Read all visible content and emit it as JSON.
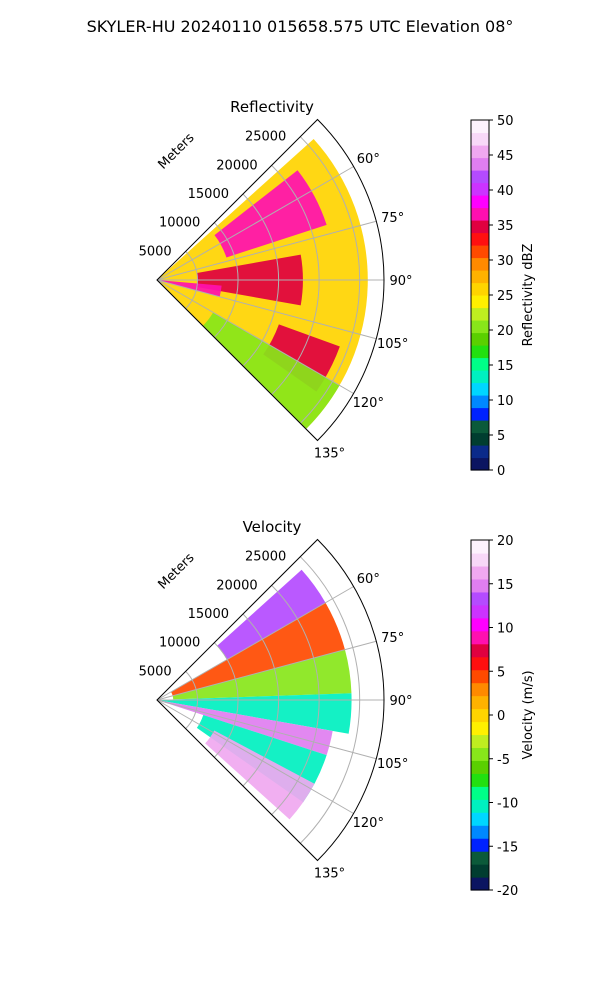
{
  "figure": {
    "suptitle": "SKYLER-HU  20240110  015658.575 UTC Elevation 08°"
  },
  "chart_data": [
    {
      "type": "heatmap",
      "subtype": "polar-sector",
      "title": "Reflectivity",
      "radial_label": "Meters",
      "radial_ticks": [
        5000,
        10000,
        15000,
        20000,
        25000
      ],
      "angle_ticks": [
        "60°",
        "75°",
        "90°",
        "105°",
        "120°",
        "135°"
      ],
      "angle_tick_values": [
        60,
        75,
        90,
        105,
        120,
        135
      ],
      "sector_deg": [
        45,
        135
      ],
      "rlim": [
        0,
        28000
      ],
      "grid": true,
      "colorbar": {
        "label": "Reflectivity dBZ",
        "range": [
          0,
          50
        ],
        "ticks": [
          0,
          5,
          10,
          15,
          20,
          25,
          30,
          35,
          40,
          45,
          50
        ],
        "stops": [
          "#0b1561",
          "#0a2a8a",
          "#003d30",
          "#0b5a3a",
          "#0022ff",
          "#0088ff",
          "#00d6ff",
          "#00f0c0",
          "#00ff88",
          "#22e010",
          "#5ad000",
          "#88e61a",
          "#bfee20",
          "#fff000",
          "#ffd400",
          "#ffb200",
          "#ff8a00",
          "#ff4a00",
          "#ff1010",
          "#e00040",
          "#ff10b0",
          "#ff00ff",
          "#cc33ff",
          "#b44bff",
          "#e07ef0",
          "#f0a8f0",
          "#f8d8f8",
          "#fdf2fd"
        ]
      },
      "echo_regions": [
        {
          "azimuth": [
            48,
            135
          ],
          "range_m": [
            0,
            26000
          ],
          "value_dbz": 26
        },
        {
          "azimuth": [
            52,
            72
          ],
          "range_m": [
            9000,
            22000
          ],
          "value_dbz": 36
        },
        {
          "azimuth": [
            80,
            100
          ],
          "range_m": [
            5000,
            18000
          ],
          "value_dbz": 35
        },
        {
          "azimuth": [
            110,
            125
          ],
          "range_m": [
            16000,
            24000
          ],
          "value_dbz": 35
        },
        {
          "azimuth": [
            95,
            105
          ],
          "range_m": [
            0,
            8000
          ],
          "value_dbz": 36
        },
        {
          "azimuth": [
            120,
            135
          ],
          "range_m": [
            8000,
            26000
          ],
          "value_dbz": 21
        }
      ]
    },
    {
      "type": "heatmap",
      "subtype": "polar-sector",
      "title": "Velocity",
      "radial_label": "Meters",
      "radial_ticks": [
        5000,
        10000,
        15000,
        20000,
        25000
      ],
      "angle_ticks": [
        "60°",
        "75°",
        "90°",
        "105°",
        "120°",
        "135°"
      ],
      "angle_tick_values": [
        60,
        75,
        90,
        105,
        120,
        135
      ],
      "sector_deg": [
        45,
        135
      ],
      "rlim": [
        0,
        28000
      ],
      "grid": true,
      "colorbar": {
        "label": "Velocity (m/s)",
        "range": [
          -20,
          20
        ],
        "ticks": [
          -20,
          -15,
          -10,
          -5,
          0,
          5,
          10,
          15,
          20
        ],
        "stops": [
          "#0b1561",
          "#003d30",
          "#0b5a3a",
          "#0022ff",
          "#0088ff",
          "#00d6ff",
          "#00f0c0",
          "#00ff88",
          "#22e010",
          "#5ad000",
          "#88e61a",
          "#bfee20",
          "#fff000",
          "#ffd400",
          "#ffb200",
          "#ff8a00",
          "#ff4a00",
          "#ff1010",
          "#e00040",
          "#ff10b0",
          "#ff00ff",
          "#cc33ff",
          "#b44bff",
          "#e07ef0",
          "#f0a8f0",
          "#f8d8f8",
          "#fdf2fd"
        ]
      },
      "echo_regions": [
        {
          "azimuth": [
            48,
            60
          ],
          "range_m": [
            10000,
            24000
          ],
          "value_ms": 13
        },
        {
          "azimuth": [
            60,
            75
          ],
          "range_m": [
            2000,
            24000
          ],
          "value_ms": 5
        },
        {
          "azimuth": [
            75,
            88
          ],
          "range_m": [
            2000,
            24000
          ],
          "value_ms": -4
        },
        {
          "azimuth": [
            88,
            100
          ],
          "range_m": [
            0,
            24000
          ],
          "value_ms": -10
        },
        {
          "azimuth": [
            100,
            108
          ],
          "range_m": [
            0,
            22000
          ],
          "value_ms": 15
        },
        {
          "azimuth": [
            108,
            125
          ],
          "range_m": [
            6000,
            22000
          ],
          "value_ms": -10
        },
        {
          "azimuth": [
            118,
            132
          ],
          "range_m": [
            8000,
            22000
          ],
          "value_ms": 16
        }
      ]
    }
  ]
}
